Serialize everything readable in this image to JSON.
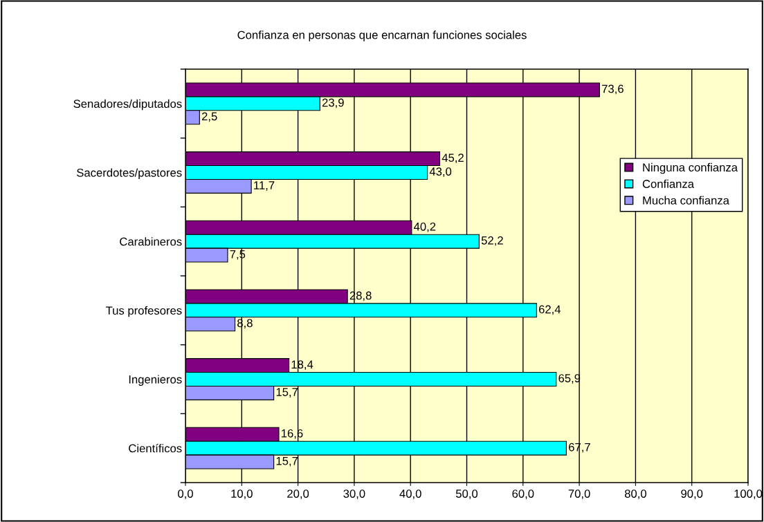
{
  "chart_data": {
    "type": "bar",
    "orientation": "horizontal",
    "title": "Confianza en personas que encarnan funciones sociales",
    "categories": [
      "Senadores/diputados",
      "Sacerdotes/pastores",
      "Carabineros",
      "Tus profesores",
      "Ingenieros",
      "Científicos"
    ],
    "series": [
      {
        "name": "Ninguna confianza",
        "color": "#800080",
        "values": [
          73.6,
          45.2,
          40.2,
          28.8,
          18.4,
          16.6
        ],
        "value_labels": [
          "73,6",
          "45,2",
          "40,2",
          "28,8",
          "18,4",
          "16,6"
        ]
      },
      {
        "name": "Confianza",
        "color": "#00ffff",
        "values": [
          23.9,
          43.0,
          52.2,
          62.4,
          65.9,
          67.7
        ],
        "value_labels": [
          "23,9",
          "43,0",
          "52,2",
          "62,4",
          "65,9",
          "67,7"
        ]
      },
      {
        "name": "Mucha confianza",
        "color": "#9999ff",
        "values": [
          2.5,
          11.7,
          7.5,
          8.8,
          15.7,
          15.7
        ],
        "value_labels": [
          "2,5",
          "11,7",
          "7,5",
          "8,8",
          "15,7",
          "15,7"
        ]
      }
    ],
    "xlim": [
      0,
      100
    ],
    "xticks": [
      {
        "value": 0,
        "label": "0,0"
      },
      {
        "value": 10,
        "label": "10,0"
      },
      {
        "value": 20,
        "label": "20,0"
      },
      {
        "value": 30,
        "label": "30,0"
      },
      {
        "value": 40,
        "label": "40,0"
      },
      {
        "value": 50,
        "label": "50,0"
      },
      {
        "value": 60,
        "label": "60,0"
      },
      {
        "value": 70,
        "label": "70,0"
      },
      {
        "value": 80,
        "label": "80,0"
      },
      {
        "value": 90,
        "label": "90,0"
      },
      {
        "value": 100,
        "label": "100,0"
      }
    ],
    "grid": "x",
    "legend": "right"
  }
}
